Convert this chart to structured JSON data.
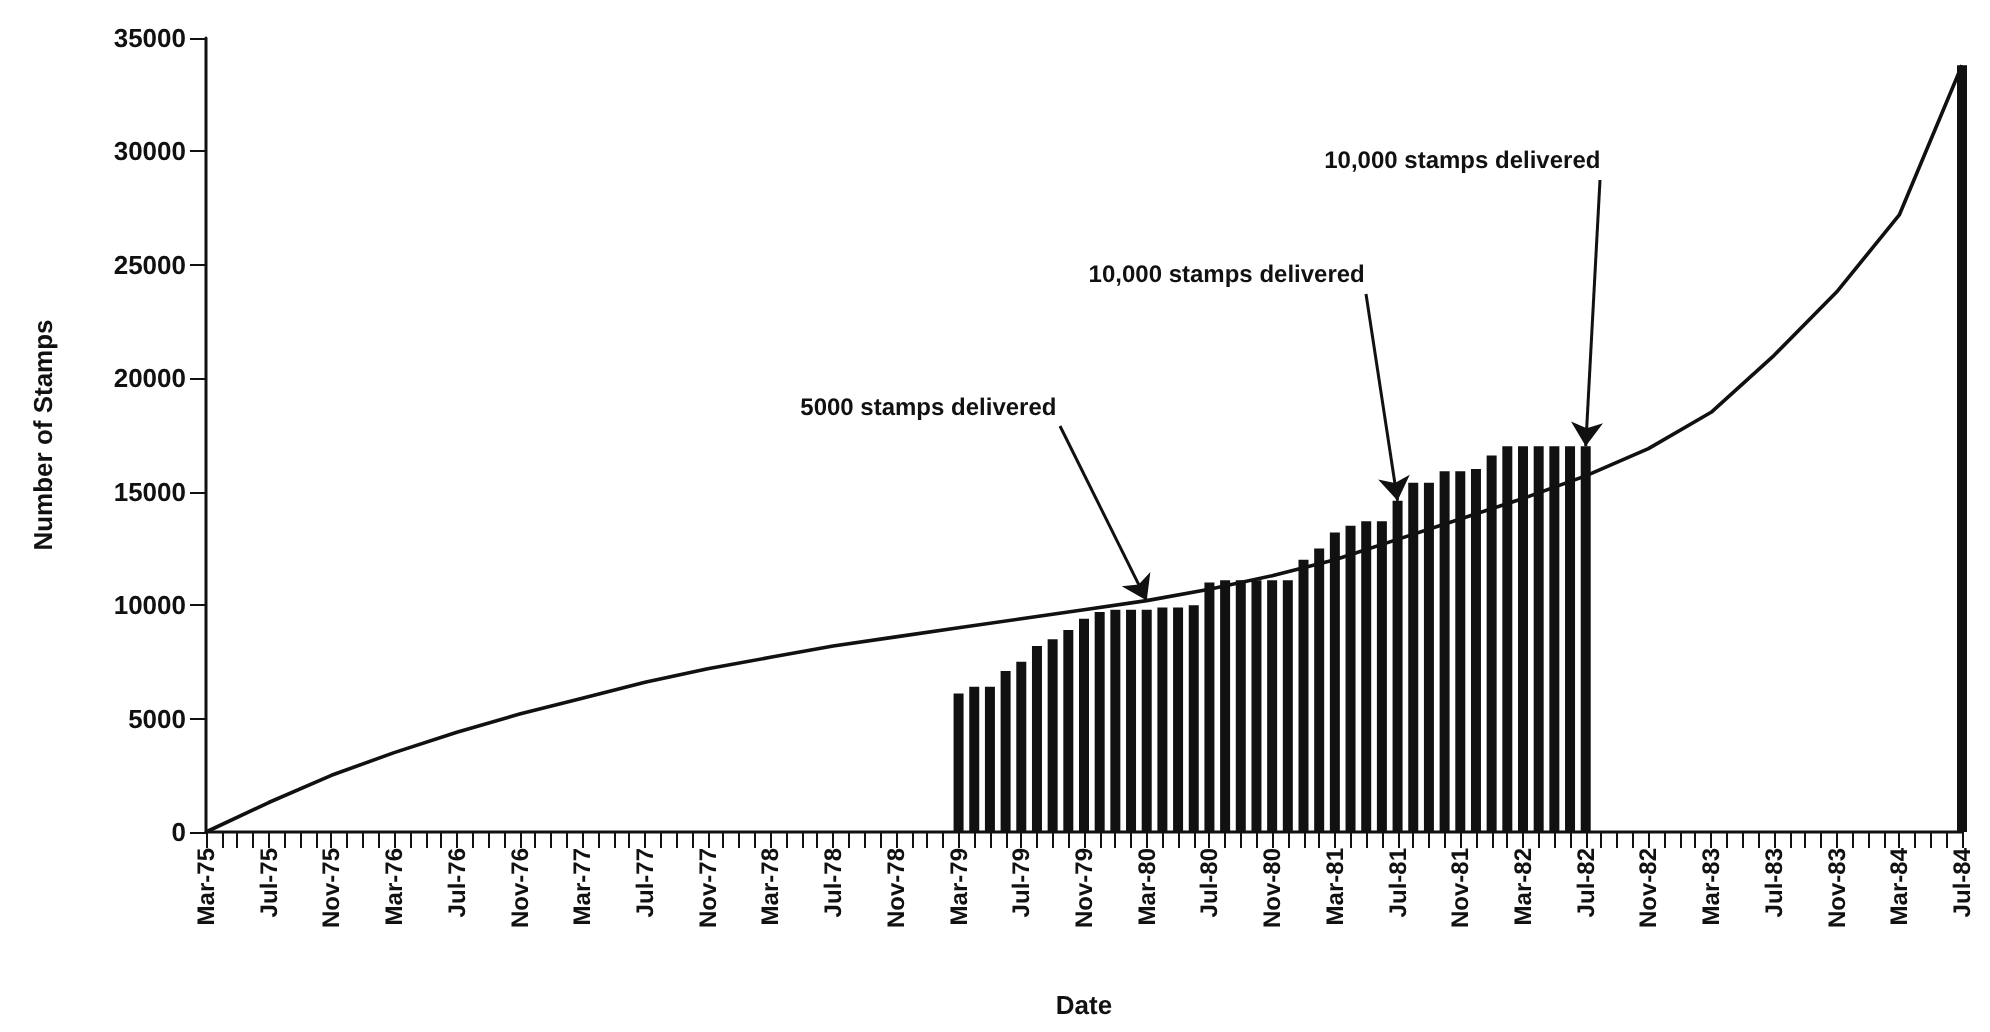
{
  "chart_data": {
    "type": "bar",
    "xlabel": "Date",
    "ylabel": "Number of Stamps",
    "categories": [
      "Mar-75",
      null,
      null,
      null,
      "Jul-75",
      null,
      null,
      null,
      "Nov-75",
      null,
      null,
      null,
      "Mar-76",
      null,
      null,
      null,
      "Jul-76",
      null,
      null,
      null,
      "Nov-76",
      null,
      null,
      null,
      "Mar-77",
      null,
      null,
      null,
      "Jul-77",
      null,
      null,
      null,
      "Nov-77",
      null,
      null,
      null,
      "Mar-78",
      null,
      null,
      null,
      "Jul-78",
      null,
      null,
      null,
      "Nov-78",
      null,
      null,
      null,
      "Mar-79",
      null,
      null,
      null,
      "Jul-79",
      null,
      null,
      null,
      "Nov-79",
      null,
      null,
      null,
      "Mar-80",
      null,
      null,
      null,
      "Jul-80",
      null,
      null,
      null,
      "Nov-80",
      null,
      null,
      null,
      "Mar-81",
      null,
      null,
      null,
      "Jul-81",
      null,
      null,
      null,
      "Nov-81",
      null,
      null,
      null,
      "Mar-82",
      null,
      null,
      null,
      "Jul-82",
      null,
      null,
      null,
      "Nov-82",
      null,
      null,
      null,
      "Mar-83",
      null,
      null,
      null,
      "Jul-83",
      null,
      null,
      null,
      "Nov-83",
      null,
      null,
      null,
      "Mar-84",
      null,
      null,
      null,
      "Jul-84"
    ],
    "series": [
      {
        "color": "#111111",
        "values": [
          null,
          null,
          null,
          null,
          null,
          null,
          null,
          null,
          null,
          null,
          null,
          null,
          null,
          null,
          null,
          null,
          null,
          null,
          null,
          null,
          null,
          null,
          null,
          null,
          null,
          null,
          null,
          null,
          null,
          null,
          null,
          null,
          null,
          null,
          null,
          null,
          null,
          null,
          null,
          null,
          null,
          null,
          null,
          null,
          null,
          null,
          null,
          null,
          6100,
          6400,
          6400,
          7100,
          7500,
          8200,
          8500,
          8900,
          9400,
          9700,
          9800,
          9800,
          9800,
          9900,
          9900,
          10000,
          11000,
          11100,
          11100,
          11100,
          11100,
          11100,
          12000,
          12500,
          13200,
          13500,
          13700,
          13700,
          14600,
          15400,
          15400,
          15900,
          15900,
          16000,
          16600,
          17000,
          17000,
          17000,
          17000,
          17000,
          17000,
          null,
          null,
          null,
          null,
          null,
          null,
          null,
          null,
          null,
          null,
          null,
          null,
          null,
          null,
          null,
          null,
          null,
          null,
          null,
          null,
          null,
          null,
          null,
          33800
        ]
      },
      {
        "type": "line",
        "color": "#111111",
        "x": [
          "Mar-75",
          "Jul-75",
          "Nov-75",
          "Mar-76",
          "Jul-76",
          "Nov-76",
          "Mar-77",
          "Jul-77",
          "Nov-77",
          "Mar-78",
          "Jul-78",
          "Nov-78",
          "Mar-79",
          "Jul-79",
          "Nov-79",
          "Mar-80",
          "Jul-80",
          "Nov-80",
          "Mar-81",
          "Jul-81",
          "Nov-81",
          "Mar-82",
          "Jul-82",
          "Nov-82",
          "Mar-83",
          "Jul-83",
          "Nov-83",
          "Mar-84",
          "Jul-84"
        ],
        "values": [
          0,
          1300,
          2500,
          3500,
          4400,
          5200,
          5900,
          6600,
          7200,
          7700,
          8200,
          8600,
          9000,
          9400,
          9800,
          10200,
          10700,
          11300,
          12000,
          12900,
          13800,
          14700,
          15700,
          16900,
          18500,
          21000,
          23800,
          27200,
          33800
        ]
      }
    ],
    "ylim": [
      0,
      35000
    ],
    "yticks": [
      0,
      5000,
      10000,
      15000,
      20000,
      25000,
      30000,
      35000
    ],
    "marker": "none",
    "line_style": "solid",
    "grid": false,
    "annotations": [
      {
        "text": "5000 stamps delivered",
        "x": "Mar-80",
        "y": 10200
      },
      {
        "text": "10,000 stamps delivered",
        "x": "Jul-81",
        "y": 14600
      },
      {
        "text": "10,000 stamps delivered",
        "x": "Jul-82",
        "y": 17000
      }
    ]
  }
}
